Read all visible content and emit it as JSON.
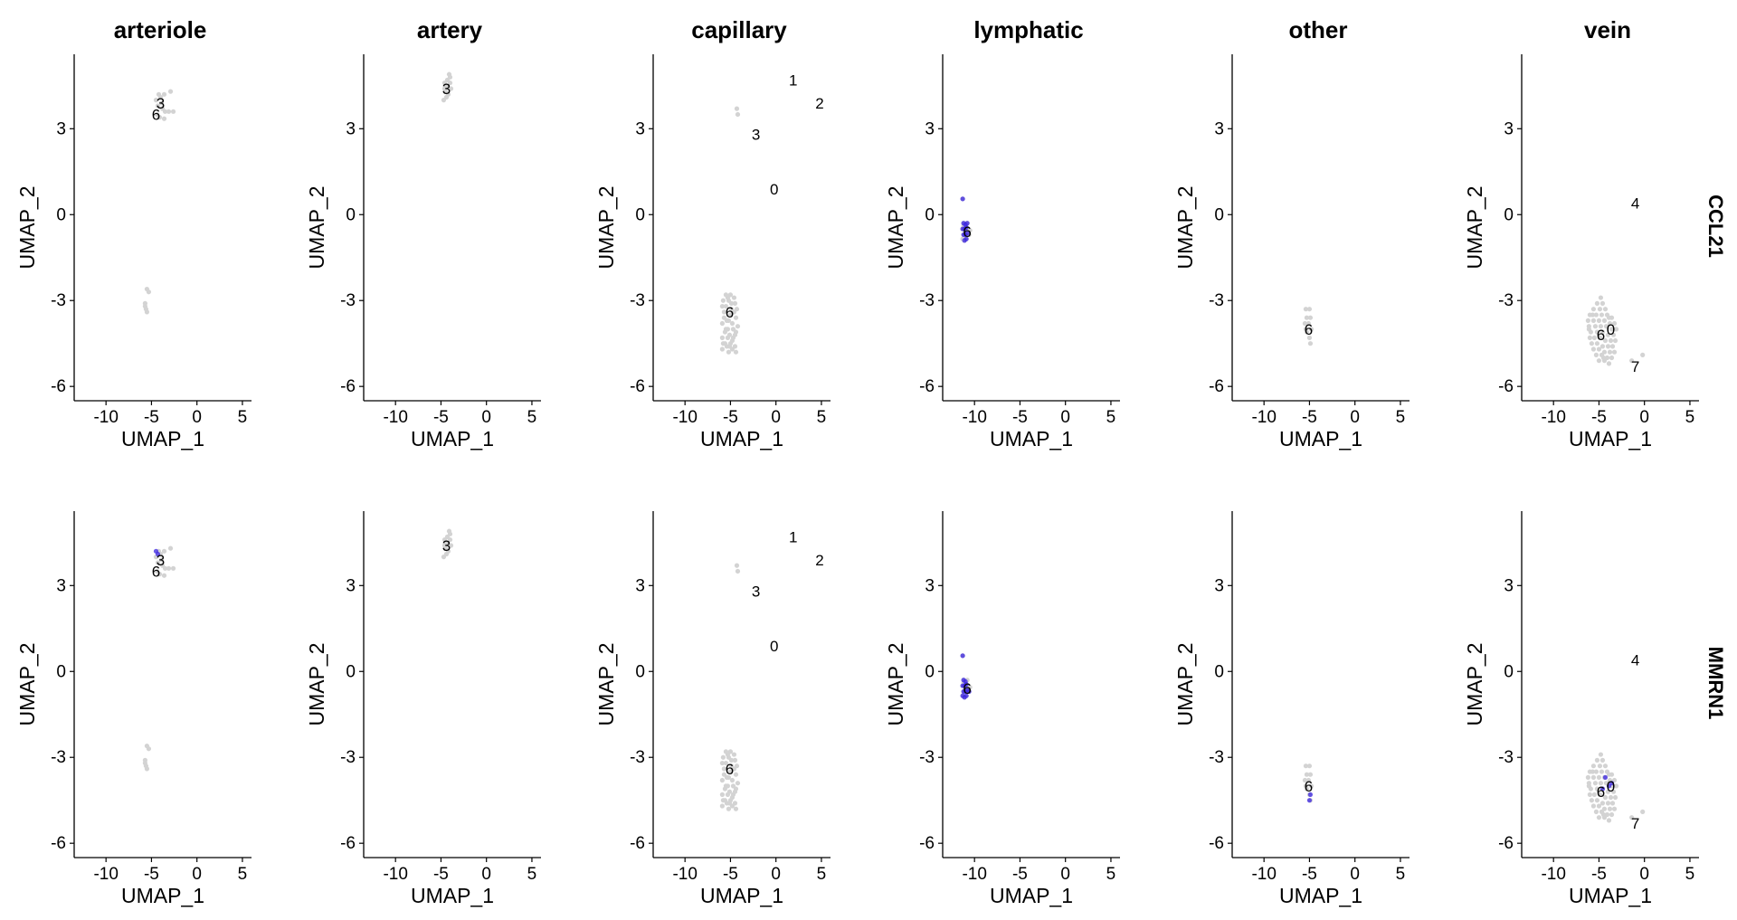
{
  "figure": {
    "panel_titles": [
      "arteriole",
      "artery",
      "capillary",
      "lymphatic",
      "other",
      "vein"
    ],
    "row_labels": [
      "CCL21",
      "MMRN1"
    ],
    "xlabel": "UMAP_1",
    "ylabel": "UMAP_2"
  },
  "chart_data": {
    "type": "scatter",
    "xlim": [
      -13.5,
      6
    ],
    "ylim": [
      -6.5,
      5.6
    ],
    "x_ticks": [
      -10,
      -5,
      0,
      5
    ],
    "y_ticks": [
      -6,
      -3,
      0,
      3
    ],
    "colors": {
      "low": "#d3d3d3",
      "high": "#3a23e0"
    },
    "columns": [
      "arteriole",
      "artery",
      "capillary",
      "lymphatic",
      "other",
      "vein"
    ],
    "rows": [
      "CCL21",
      "MMRN1"
    ],
    "cluster_labels": {
      "arteriole": [
        {
          "label": "3",
          "x": -4.0,
          "y": 3.9
        },
        {
          "label": "6",
          "x": -4.5,
          "y": 3.5
        }
      ],
      "artery": [
        {
          "label": "3",
          "x": -4.4,
          "y": 4.4
        }
      ],
      "capillary": [
        {
          "label": "1",
          "x": 1.9,
          "y": 4.7
        },
        {
          "label": "2",
          "x": 4.8,
          "y": 3.9
        },
        {
          "label": "3",
          "x": -2.2,
          "y": 2.8
        },
        {
          "label": "0",
          "x": -0.2,
          "y": 0.9
        },
        {
          "label": "6",
          "x": -5.1,
          "y": -3.4
        }
      ],
      "lymphatic": [
        {
          "label": "6",
          "x": -10.8,
          "y": -0.6
        }
      ],
      "other": [
        {
          "label": "6",
          "x": -5.1,
          "y": -4.0
        }
      ],
      "vein": [
        {
          "label": "4",
          "x": -1.0,
          "y": 0.4
        },
        {
          "label": "6",
          "x": -4.8,
          "y": -4.2
        },
        {
          "label": "0",
          "x": -3.7,
          "y": -4.0
        },
        {
          "label": "7",
          "x": -1.0,
          "y": -5.3
        }
      ]
    },
    "points": {
      "arteriole": [
        [
          -4.2,
          4.2
        ],
        [
          -4.5,
          4.0
        ],
        [
          -4.0,
          4.1
        ],
        [
          -3.6,
          4.2
        ],
        [
          -2.9,
          4.3
        ],
        [
          -4.3,
          3.8
        ],
        [
          -3.8,
          3.7
        ],
        [
          -3.5,
          3.6
        ],
        [
          -3.1,
          3.6
        ],
        [
          -2.6,
          3.6
        ],
        [
          -4.1,
          3.4
        ],
        [
          -3.6,
          3.35
        ],
        [
          -4.4,
          3.5
        ],
        [
          -3.9,
          3.9
        ],
        [
          -5.5,
          -2.6
        ],
        [
          -5.3,
          -2.7
        ],
        [
          -5.7,
          -3.1
        ],
        [
          -5.6,
          -3.3
        ],
        [
          -5.5,
          -3.4
        ],
        [
          -5.7,
          -3.2
        ]
      ],
      "artery": [
        [
          -4.6,
          4.6
        ],
        [
          -4.3,
          4.7
        ],
        [
          -4.0,
          4.8
        ],
        [
          -4.4,
          4.5
        ],
        [
          -3.9,
          4.4
        ],
        [
          -4.5,
          4.3
        ],
        [
          -4.2,
          4.2
        ],
        [
          -4.7,
          4.0
        ],
        [
          -4.1,
          4.9
        ],
        [
          -4.4,
          4.1
        ],
        [
          -4.0,
          4.6
        ],
        [
          -4.6,
          4.4
        ]
      ],
      "capillary": [
        [
          -4.3,
          3.7
        ],
        [
          -4.2,
          3.5
        ],
        [
          -5.5,
          -2.8
        ],
        [
          -5.0,
          -2.8
        ],
        [
          -4.6,
          -2.9
        ],
        [
          -5.8,
          -3.0
        ],
        [
          -5.2,
          -3.0
        ],
        [
          -4.5,
          -3.1
        ],
        [
          -5.5,
          -3.2
        ],
        [
          -4.9,
          -3.3
        ],
        [
          -4.3,
          -3.3
        ],
        [
          -5.7,
          -3.4
        ],
        [
          -5.0,
          -3.5
        ],
        [
          -4.4,
          -3.6
        ],
        [
          -5.4,
          -3.7
        ],
        [
          -4.8,
          -3.8
        ],
        [
          -5.9,
          -3.8
        ],
        [
          -4.2,
          -3.9
        ],
        [
          -5.3,
          -4.0
        ],
        [
          -4.7,
          -4.0
        ],
        [
          -5.6,
          -4.1
        ],
        [
          -5.1,
          -4.2
        ],
        [
          -4.5,
          -4.2
        ],
        [
          -5.9,
          -4.3
        ],
        [
          -5.3,
          -4.3
        ],
        [
          -4.8,
          -4.4
        ],
        [
          -5.6,
          -4.5
        ],
        [
          -5.0,
          -4.5
        ],
        [
          -4.5,
          -4.6
        ],
        [
          -5.4,
          -4.6
        ],
        [
          -5.9,
          -4.7
        ],
        [
          -4.8,
          -4.7
        ],
        [
          -5.2,
          -4.8
        ],
        [
          -4.4,
          -4.8
        ],
        [
          -5.7,
          -3.6
        ],
        [
          -4.6,
          -3.4
        ],
        [
          -5.5,
          -4.0
        ],
        [
          -4.9,
          -3.1
        ],
        [
          -5.2,
          -3.7
        ],
        [
          -4.7,
          -4.3
        ],
        [
          -5.8,
          -4.5
        ],
        [
          -5.3,
          -2.9
        ],
        [
          -4.4,
          -4.1
        ],
        [
          -5.9,
          -3.2
        ],
        [
          -5.1,
          -4.6
        ]
      ],
      "lymphatic": [
        [
          -11.3,
          0.55
        ],
        [
          -11.2,
          -0.3
        ],
        [
          -11.0,
          -0.35
        ],
        [
          -10.8,
          -0.3
        ],
        [
          -11.3,
          -0.5
        ],
        [
          -11.1,
          -0.5
        ],
        [
          -10.9,
          -0.45
        ],
        [
          -10.7,
          -0.5
        ],
        [
          -11.2,
          -0.7
        ],
        [
          -11.0,
          -0.7
        ],
        [
          -10.8,
          -0.65
        ],
        [
          -10.6,
          -0.7
        ],
        [
          -11.3,
          -0.85
        ],
        [
          -11.1,
          -0.9
        ],
        [
          -10.9,
          -0.85
        ],
        [
          -10.5,
          -0.55
        ],
        [
          -11.2,
          -0.4
        ],
        [
          -11.0,
          -0.6
        ]
      ],
      "other": [
        [
          -5.4,
          -3.3
        ],
        [
          -5.0,
          -3.3
        ],
        [
          -5.3,
          -3.6
        ],
        [
          -4.9,
          -3.6
        ],
        [
          -5.5,
          -3.8
        ],
        [
          -5.1,
          -3.8
        ],
        [
          -4.8,
          -4.0
        ],
        [
          -5.3,
          -4.1
        ],
        [
          -5.0,
          -4.3
        ],
        [
          -4.9,
          -4.5
        ],
        [
          -5.4,
          -4.0
        ]
      ],
      "vein": [
        [
          -4.8,
          -2.9
        ],
        [
          -5.2,
          -3.1
        ],
        [
          -4.6,
          -3.1
        ],
        [
          -5.6,
          -3.3
        ],
        [
          -4.9,
          -3.3
        ],
        [
          -4.3,
          -3.3
        ],
        [
          -6.0,
          -3.5
        ],
        [
          -5.3,
          -3.5
        ],
        [
          -4.7,
          -3.5
        ],
        [
          -4.1,
          -3.5
        ],
        [
          -3.6,
          -3.6
        ],
        [
          -6.2,
          -3.7
        ],
        [
          -5.6,
          -3.7
        ],
        [
          -5.0,
          -3.7
        ],
        [
          -4.4,
          -3.7
        ],
        [
          -3.8,
          -3.8
        ],
        [
          -3.3,
          -3.8
        ],
        [
          -6.1,
          -3.9
        ],
        [
          -5.4,
          -3.9
        ],
        [
          -4.8,
          -3.9
        ],
        [
          -4.2,
          -3.9
        ],
        [
          -3.6,
          -4.0
        ],
        [
          -3.1,
          -4.0
        ],
        [
          -5.9,
          -4.1
        ],
        [
          -5.2,
          -4.1
        ],
        [
          -4.6,
          -4.1
        ],
        [
          -4.0,
          -4.2
        ],
        [
          -3.4,
          -4.2
        ],
        [
          -6.0,
          -4.3
        ],
        [
          -5.5,
          -4.3
        ],
        [
          -4.9,
          -4.3
        ],
        [
          -4.3,
          -4.4
        ],
        [
          -3.7,
          -4.4
        ],
        [
          -3.2,
          -4.4
        ],
        [
          -5.8,
          -4.5
        ],
        [
          -5.2,
          -4.5
        ],
        [
          -4.6,
          -4.6
        ],
        [
          -4.0,
          -4.6
        ],
        [
          -3.5,
          -4.6
        ],
        [
          -5.6,
          -4.7
        ],
        [
          -5.0,
          -4.7
        ],
        [
          -4.4,
          -4.8
        ],
        [
          -3.8,
          -4.8
        ],
        [
          -3.3,
          -4.8
        ],
        [
          -5.3,
          -4.9
        ],
        [
          -4.7,
          -4.9
        ],
        [
          -4.1,
          -5.0
        ],
        [
          -3.6,
          -5.0
        ],
        [
          -5.0,
          -5.1
        ],
        [
          -4.4,
          -5.1
        ],
        [
          -3.9,
          -5.2
        ],
        [
          -6.1,
          -4.0
        ],
        [
          -5.7,
          -3.5
        ],
        [
          -3.9,
          -3.6
        ],
        [
          -4.5,
          -5.0
        ],
        [
          -0.2,
          -4.9
        ],
        [
          -1.4,
          -5.1
        ]
      ]
    },
    "high_points": {
      "CCL21": {
        "lymphatic": [
          [
            -11.3,
            0.55
          ],
          [
            -11.2,
            -0.3
          ],
          [
            -11.0,
            -0.35
          ],
          [
            -10.8,
            -0.3
          ],
          [
            -11.3,
            -0.5
          ],
          [
            -11.1,
            -0.5
          ],
          [
            -10.9,
            -0.45
          ],
          [
            -11.2,
            -0.7
          ],
          [
            -11.0,
            -0.7
          ],
          [
            -10.8,
            -0.65
          ],
          [
            -11.1,
            -0.9
          ],
          [
            -10.9,
            -0.85
          ]
        ]
      },
      "MMRN1": {
        "arteriole": [
          [
            -4.5,
            4.2
          ],
          [
            -4.3,
            4.1
          ]
        ],
        "lymphatic": [
          [
            -11.3,
            0.55
          ],
          [
            -11.2,
            -0.3
          ],
          [
            -11.0,
            -0.35
          ],
          [
            -11.3,
            -0.5
          ],
          [
            -11.1,
            -0.5
          ],
          [
            -10.9,
            -0.45
          ],
          [
            -11.2,
            -0.7
          ],
          [
            -11.0,
            -0.7
          ],
          [
            -10.8,
            -0.65
          ],
          [
            -11.3,
            -0.85
          ],
          [
            -11.1,
            -0.9
          ],
          [
            -10.9,
            -0.85
          ],
          [
            -10.6,
            -0.7
          ]
        ],
        "other": [
          [
            -4.9,
            -4.3
          ],
          [
            -5.0,
            -4.5
          ]
        ],
        "vein": [
          [
            -4.3,
            -3.7
          ],
          [
            -3.9,
            -4.0
          ],
          [
            -3.6,
            -3.9
          ],
          [
            -4.6,
            -4.1
          ]
        ]
      }
    }
  }
}
